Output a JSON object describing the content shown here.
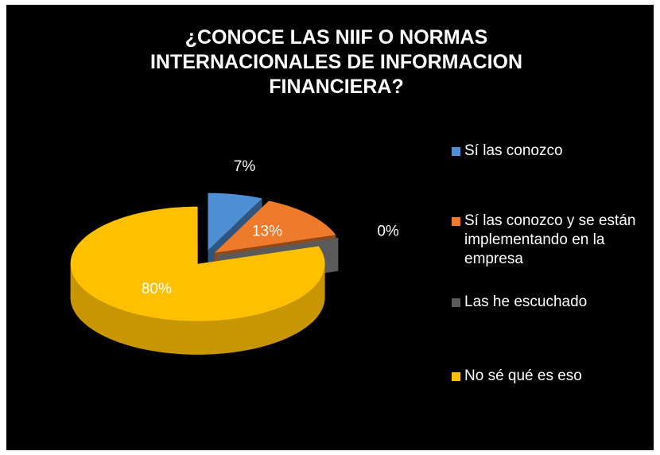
{
  "chart_data": {
    "type": "pie",
    "title": "¿CONOCE LAS NIIF O NORMAS INTERNACIONALES DE INFORMACION FINANCIERA?",
    "categories": [
      "Sí las conozco",
      "Sí las conozco y se están implementando en la empresa",
      "Las he escuchado",
      "No sé qué es eso"
    ],
    "values": [
      7,
      13,
      0,
      80
    ],
    "value_labels": [
      "7%",
      "13%",
      "0%",
      "80%"
    ],
    "colors": [
      "#4f8fd4",
      "#ee7a2c",
      "#5a5a5a",
      "#ffc000"
    ],
    "legend": "right"
  }
}
